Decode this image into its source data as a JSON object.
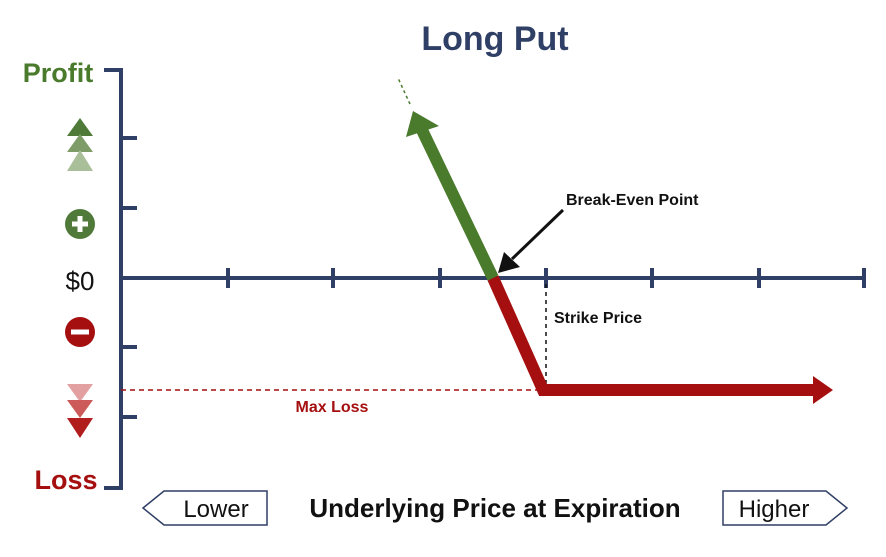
{
  "title": "Long Put",
  "y_axis": {
    "top_label": "Profit",
    "bottom_label": "Loss",
    "zero_label": "$0"
  },
  "x_axis": {
    "label": "Underlying Price at Expiration",
    "lower_label": "Lower",
    "higher_label": "Higher"
  },
  "annotations": {
    "break_even": "Break-Even Point",
    "strike": "Strike Price",
    "max_loss": "Max Loss"
  },
  "icons": {
    "plus": "plus-circle-icon",
    "minus": "minus-circle-icon",
    "up": "triple-up-arrow-icon",
    "down": "triple-down-arrow-icon"
  },
  "colors": {
    "axis": "#2f3f66",
    "profit": "#4a7a2c",
    "loss": "#a50f0f",
    "title": "#2f3f66",
    "text": "#111111"
  }
}
